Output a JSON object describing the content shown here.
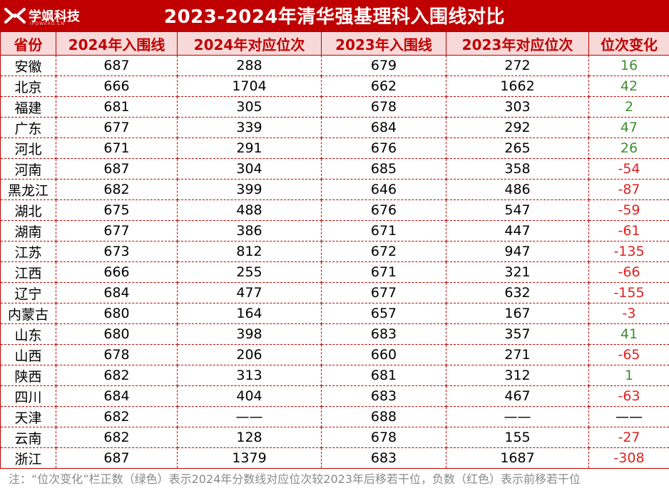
{
  "logo": {
    "text": "学飒科技",
    "sub": "IPOWERU.CN"
  },
  "title": "2023-2024年清华强基理科入围线对比",
  "headers": [
    "省份",
    "2024年入围线",
    "2024年对应位次",
    "2023年入围线",
    "2023年对应位次",
    "位次变化"
  ],
  "rows": [
    [
      "安徽",
      "687",
      "288",
      "679",
      "272",
      "16"
    ],
    [
      "北京",
      "666",
      "1704",
      "662",
      "1662",
      "42"
    ],
    [
      "福建",
      "681",
      "305",
      "678",
      "303",
      "2"
    ],
    [
      "广东",
      "677",
      "339",
      "684",
      "292",
      "47"
    ],
    [
      "河北",
      "671",
      "291",
      "676",
      "265",
      "26"
    ],
    [
      "河南",
      "687",
      "304",
      "685",
      "358",
      "-54"
    ],
    [
      "黑龙江",
      "682",
      "399",
      "646",
      "486",
      "-87"
    ],
    [
      "湖北",
      "675",
      "488",
      "676",
      "547",
      "-59"
    ],
    [
      "湖南",
      "677",
      "386",
      "671",
      "447",
      "-61"
    ],
    [
      "江苏",
      "673",
      "812",
      "672",
      "947",
      "-135"
    ],
    [
      "江西",
      "666",
      "255",
      "671",
      "321",
      "-66"
    ],
    [
      "辽宁",
      "684",
      "477",
      "677",
      "632",
      "-155"
    ],
    [
      "内蒙古",
      "680",
      "164",
      "657",
      "167",
      "-3"
    ],
    [
      "山东",
      "680",
      "398",
      "683",
      "357",
      "41"
    ],
    [
      "山西",
      "678",
      "206",
      "660",
      "271",
      "-65"
    ],
    [
      "陕西",
      "682",
      "313",
      "681",
      "312",
      "1"
    ],
    [
      "四川",
      "684",
      "404",
      "683",
      "467",
      "-63"
    ],
    [
      "天津",
      "682",
      "——",
      "688",
      "——",
      "——"
    ],
    [
      "云南",
      "682",
      "128",
      "678",
      "155",
      "-27"
    ],
    [
      "浙江",
      "687",
      "1379",
      "683",
      "1687",
      "-308"
    ]
  ],
  "colors": {
    "brand": "#c00000",
    "header_bg": "#f7d9d9",
    "positive": "#3f8f2f",
    "negative": "#e02020"
  },
  "note": "注：“位次变化”栏正数（绿色）表示2024年分数线对应位次较2023年后移若干位，负数（红色）表示前移若干位"
}
